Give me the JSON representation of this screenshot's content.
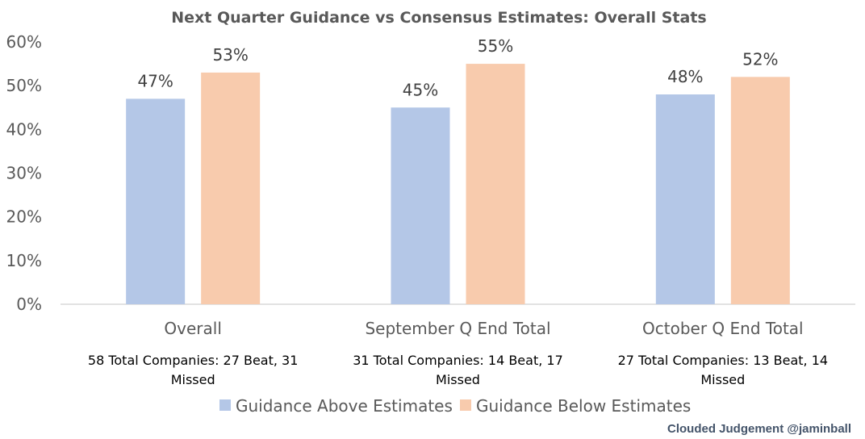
{
  "chart_data": {
    "type": "bar",
    "title": "Next Quarter Guidance vs Consensus Estimates: Overall Stats",
    "categories": [
      "Overall",
      "September Q End Total",
      "October Q End Total"
    ],
    "category_notes": [
      [
        "58 Total Companies: 27 Beat, 31",
        "Missed"
      ],
      [
        "31 Total Companies: 14 Beat, 17",
        "Missed"
      ],
      [
        "27 Total Companies: 13 Beat, 14",
        "Missed"
      ]
    ],
    "series": [
      {
        "name": "Guidance Above Estimates",
        "color": "#b4c7e7",
        "values": [
          47,
          45,
          48
        ],
        "labels": [
          "47%",
          "45%",
          "48%"
        ]
      },
      {
        "name": "Guidance Below Estimates",
        "color": "#f8cbad",
        "values": [
          53,
          55,
          52
        ],
        "labels": [
          "53%",
          "55%",
          "52%"
        ]
      }
    ],
    "y_ticks": [
      "0%",
      "10%",
      "20%",
      "30%",
      "40%",
      "50%",
      "60%"
    ],
    "ylim": [
      0,
      60
    ],
    "grid": false,
    "legend_position": "bottom",
    "credit": "Clouded Judgement @jaminball"
  }
}
